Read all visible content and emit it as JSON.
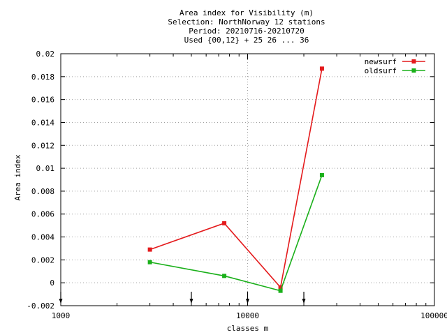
{
  "chart_data": {
    "type": "line",
    "title_lines": [
      "Area index  for Visibility (m)",
      "Selection: NorthNorway     12 stations",
      "Period: 20210716-20210720",
      "Used {00,12} + 25 26 ... 36"
    ],
    "xlabel": "classes m",
    "ylabel": "Area index",
    "x_scale": "log",
    "xlim": [
      1000,
      100000
    ],
    "ylim": [
      -0.002,
      0.02
    ],
    "x_ticks": [
      1000,
      10000,
      100000
    ],
    "x_tick_labels": [
      "1000",
      "10000",
      "100000"
    ],
    "y_ticks": [
      -0.002,
      0,
      0.002,
      0.004,
      0.006,
      0.008,
      0.01,
      0.012,
      0.014,
      0.016,
      0.018,
      0.02
    ],
    "y_tick_labels": [
      "-0.002",
      "0",
      "0.002",
      "0.004",
      "0.006",
      "0.008",
      "0.01",
      "0.012",
      "0.014",
      "0.016",
      "0.018",
      "0.02"
    ],
    "grid": true,
    "legend_position": "top-right",
    "x": [
      3000,
      7500,
      15000,
      25000
    ],
    "series": [
      {
        "name": "newsurf",
        "color": "#e41a1c",
        "values": [
          0.0029,
          0.0052,
          -0.0004,
          0.0187
        ]
      },
      {
        "name": "oldsurf",
        "color": "#1ab01a",
        "values": [
          0.0018,
          0.0006,
          -0.0007,
          0.0094
        ]
      }
    ],
    "class_markers": [
      1000,
      5000,
      10000,
      20000
    ]
  }
}
